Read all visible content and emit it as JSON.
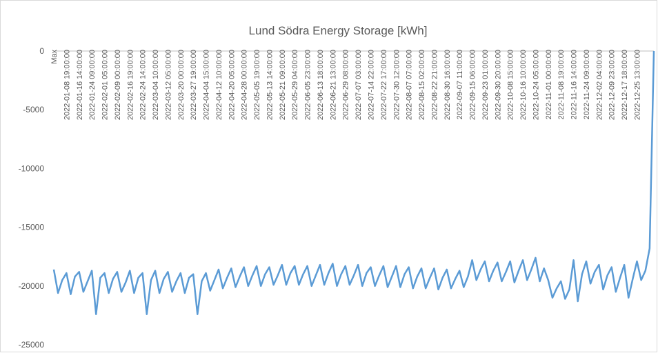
{
  "chart_data": {
    "type": "line",
    "title": "Lund Södra Energy Storage [kWh]",
    "color": "#5b9bd5",
    "ylim": [
      -25000,
      0
    ],
    "yticks": [
      0,
      -5000,
      -10000,
      -15000,
      -20000,
      -25000
    ],
    "categories": [
      "Max",
      null,
      null,
      "2022-01-08 19:00:00",
      null,
      null,
      "2022-01-16 14:00:00",
      null,
      null,
      "2022-01-24 09:00:00",
      null,
      null,
      "2022-02-01 05:00:00",
      null,
      null,
      "2022-02-09 00:00:00",
      null,
      null,
      "2022-02-16 19:00:00",
      null,
      null,
      "2022-02-24 14:00:00",
      null,
      null,
      "2022-03-04 10:00:00",
      null,
      null,
      "2022-03-12 05:00:00",
      null,
      null,
      "2022-03-20 00:00:00",
      null,
      null,
      "2022-03-27 19:00:00",
      null,
      null,
      "2022-04-04 15:00:00",
      null,
      null,
      "2022-04-12 10:00:00",
      null,
      null,
      "2022-04-20 05:00:00",
      null,
      null,
      "2022-04-28 00:00:00",
      null,
      null,
      "2022-05-05 19:00:00",
      null,
      null,
      "2022-05-13 14:00:00",
      null,
      null,
      "2022-05-21 09:00:00",
      null,
      null,
      "2022-05-29 04:00:00",
      null,
      null,
      "2022-06-05 23:00:00",
      null,
      null,
      "2022-06-13 18:00:00",
      null,
      null,
      "2022-06-21 13:00:00",
      null,
      null,
      "2022-06-29 08:00:00",
      null,
      null,
      "2022-07-07 03:00:00",
      null,
      null,
      "2022-07-14 22:00:00",
      null,
      null,
      "2022-07-22 17:00:00",
      null,
      null,
      "2022-07-30 12:00:00",
      null,
      null,
      "2022-08-07 07:00:00",
      null,
      null,
      "2022-08-15 02:00:00",
      null,
      null,
      "2022-08-22 21:00:00",
      null,
      null,
      "2022-08-30 16:00:00",
      null,
      null,
      "2022-09-07 11:00:00",
      null,
      null,
      "2022-09-15 06:00:00",
      null,
      null,
      "2022-09-23 01:00:00",
      null,
      null,
      "2022-09-30 20:00:00",
      null,
      null,
      "2022-10-08 15:00:00",
      null,
      null,
      "2022-10-16 10:00:00",
      null,
      null,
      "2022-10-24 05:00:00",
      null,
      null,
      "2022-11-01 00:00:00",
      null,
      null,
      "2022-11-08 19:00:00",
      null,
      null,
      "2022-11-16 14:00:00",
      null,
      null,
      "2022-11-24 09:00:00",
      null,
      null,
      "2022-12-02 04:00:00",
      null,
      null,
      "2022-12-09 23:00:00",
      null,
      null,
      "2022-12-17 18:00:00",
      null,
      null,
      "2022-12-25 13:00:00",
      null,
      null,
      null,
      null
    ],
    "values": [
      -18600,
      -20600,
      -19500,
      -18900,
      -20700,
      -19200,
      -18800,
      -20500,
      -19600,
      -18700,
      -22400,
      -19300,
      -18900,
      -20600,
      -19400,
      -18800,
      -20500,
      -19700,
      -18700,
      -20600,
      -19300,
      -18900,
      -22400,
      -19500,
      -18700,
      -20600,
      -19400,
      -18800,
      -20500,
      -19600,
      -18900,
      -20600,
      -19300,
      -19000,
      -22400,
      -19600,
      -18900,
      -20400,
      -19500,
      -18600,
      -20200,
      -19300,
      -18500,
      -20100,
      -19200,
      -18400,
      -20000,
      -19100,
      -18300,
      -20000,
      -19000,
      -18400,
      -19900,
      -19100,
      -18200,
      -19900,
      -18900,
      -18300,
      -19900,
      -19000,
      -18300,
      -20000,
      -19100,
      -18200,
      -19900,
      -18900,
      -18100,
      -20000,
      -19000,
      -18300,
      -19900,
      -19100,
      -18200,
      -20000,
      -18900,
      -18400,
      -20000,
      -19100,
      -18300,
      -20100,
      -19200,
      -18300,
      -20100,
      -19000,
      -18400,
      -20200,
      -19200,
      -18500,
      -20200,
      -19300,
      -18500,
      -20300,
      -19300,
      -18600,
      -20200,
      -19400,
      -18700,
      -20100,
      -19200,
      -17800,
      -19500,
      -18600,
      -17900,
      -19600,
      -18700,
      -18000,
      -19600,
      -18800,
      -17900,
      -19700,
      -18700,
      -17800,
      -19500,
      -18600,
      -17600,
      -19600,
      -18500,
      -19500,
      -21000,
      -20200,
      -19600,
      -21100,
      -20300,
      -17800,
      -21300,
      -19000,
      -17900,
      -19800,
      -18800,
      -18200,
      -20300,
      -19100,
      -18400,
      -20500,
      -19300,
      -18200,
      -21000,
      -19400,
      -17900,
      -19500,
      -18700,
      -16800,
      0
    ]
  }
}
